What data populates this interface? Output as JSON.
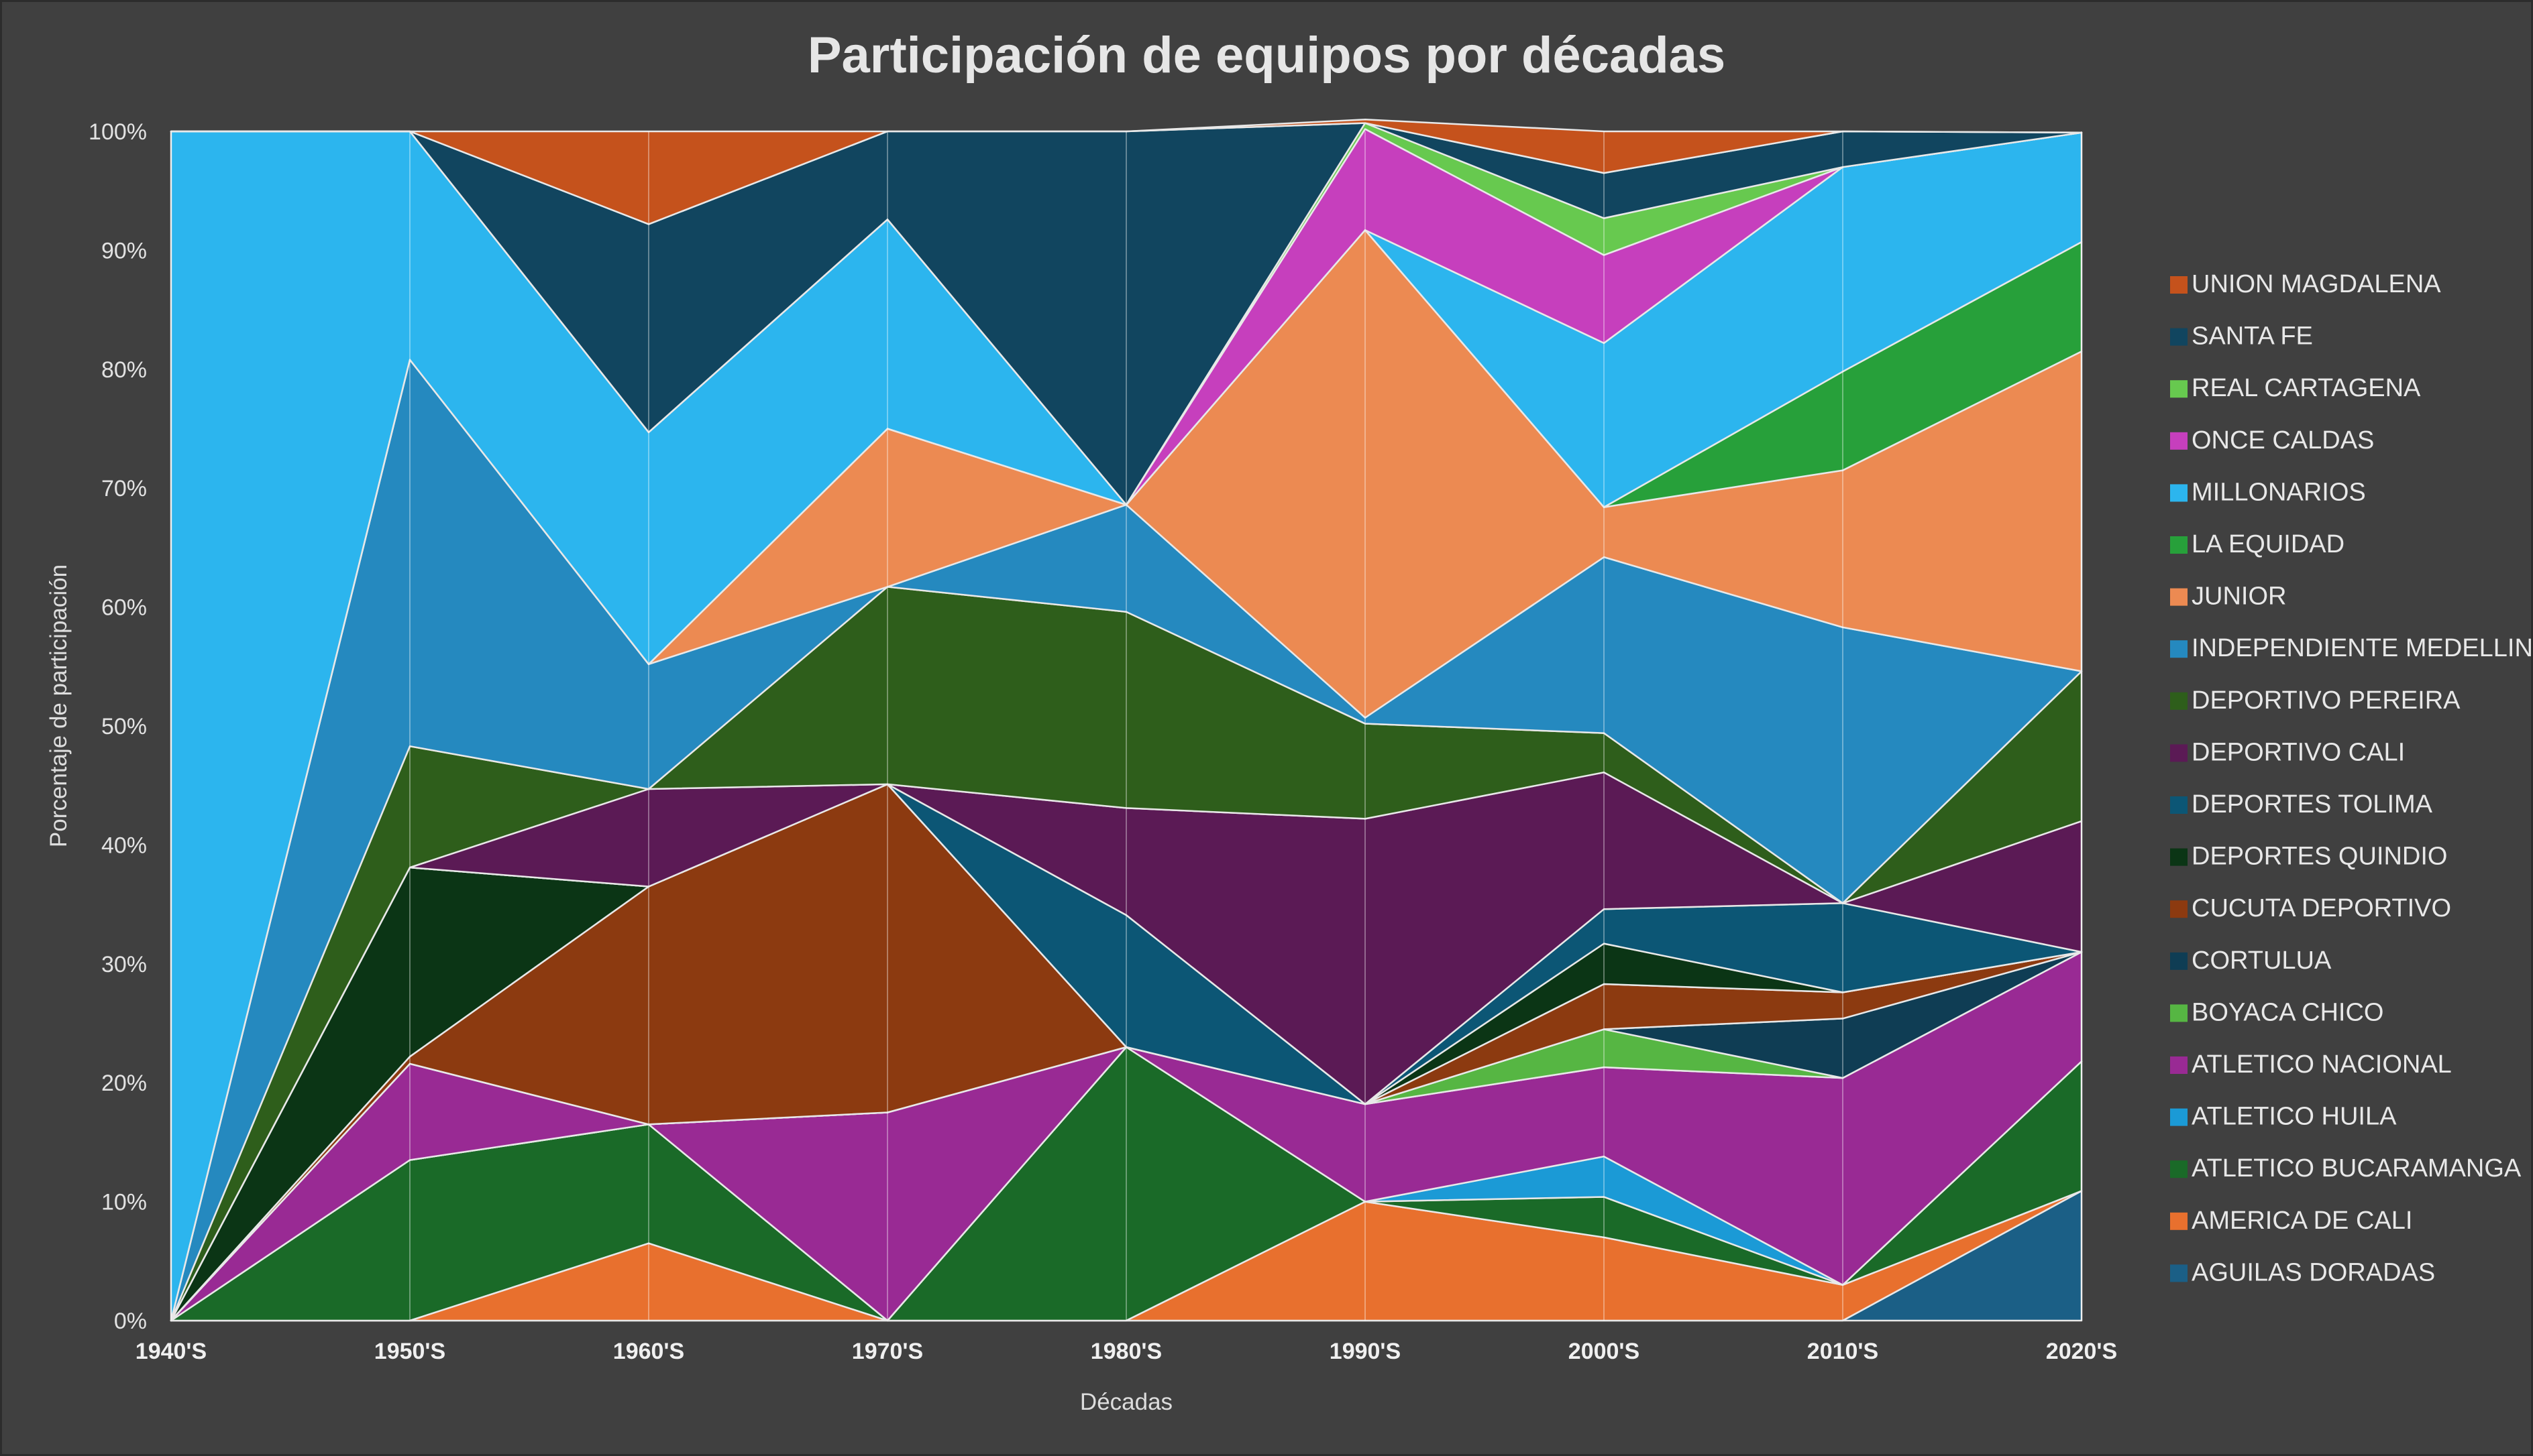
{
  "chart_data": {
    "type": "area",
    "stacked": true,
    "normalized": true,
    "title": "Participación de equipos por décadas",
    "xlabel": "Décadas",
    "ylabel": "Porcentaje de participación",
    "ylim": [
      0,
      100
    ],
    "yticks": [
      "0%",
      "10%",
      "20%",
      "30%",
      "40%",
      "50%",
      "60%",
      "70%",
      "80%",
      "90%",
      "100%"
    ],
    "categories": [
      "1940'S",
      "1950'S",
      "1960'S",
      "1970'S",
      "1980'S",
      "1990'S",
      "2000'S",
      "2010'S",
      "2020'S"
    ],
    "grid": true,
    "legend_position": "right",
    "series": [
      {
        "name": "AGUILAS DORADAS",
        "color": "#1b5f86",
        "values": [
          0,
          0,
          0,
          0,
          0,
          0,
          0,
          0,
          10.9
        ]
      },
      {
        "name": "AMERICA DE CALI",
        "color": "#e8702e",
        "values": [
          0,
          0,
          6.5,
          0,
          0,
          10,
          7,
          3,
          0
        ]
      },
      {
        "name": "ATLETICO BUCARAMANGA",
        "color": "#1a6a28",
        "values": [
          0,
          13.5,
          10,
          0,
          23,
          0,
          3.4,
          0,
          10.9
        ]
      },
      {
        "name": "ATLETICO HUILA",
        "color": "#1b9ad6",
        "values": [
          0,
          0,
          0,
          0,
          0,
          0,
          3.4,
          0,
          0
        ]
      },
      {
        "name": "ATLETICO NACIONAL",
        "color": "#992a94",
        "values": [
          0,
          8.1,
          0,
          17.5,
          0,
          8.2,
          7.5,
          17.4,
          9.2
        ]
      },
      {
        "name": "BOYACA CHICO",
        "color": "#56b643",
        "values": [
          0,
          0,
          0,
          0,
          0,
          0,
          3.2,
          0,
          0
        ]
      },
      {
        "name": "CORTULUA",
        "color": "#0f3d54",
        "values": [
          0,
          0,
          0,
          0,
          0,
          0,
          0,
          5,
          0
        ]
      },
      {
        "name": "CUCUTA DEPORTIVO",
        "color": "#8c3a10",
        "values": [
          0,
          0.6,
          20,
          27.6,
          0,
          0,
          3.8,
          2.2,
          0
        ]
      },
      {
        "name": "DEPORTES QUINDIO",
        "color": "#0b3515",
        "values": [
          0,
          15.9,
          0,
          0,
          0,
          0,
          3.4,
          0,
          0
        ]
      },
      {
        "name": "DEPORTES TOLIMA",
        "color": "#0c5675",
        "values": [
          0,
          0,
          0,
          0,
          11.1,
          0,
          2.9,
          7.5,
          0
        ]
      },
      {
        "name": "DEPORTIVO CALI",
        "color": "#5b1a55",
        "values": [
          0,
          0,
          8.2,
          0,
          9,
          24,
          11.5,
          0,
          11
        ]
      },
      {
        "name": "DEPORTIVO PEREIRA",
        "color": "#2e5e1b",
        "values": [
          0,
          10.2,
          0,
          16.6,
          16.5,
          8,
          3.3,
          0,
          12.6
        ]
      },
      {
        "name": "INDEPENDIENTE MEDELLIN",
        "color": "#2589bf",
        "values": [
          0,
          32.5,
          10.5,
          0,
          9,
          0.5,
          14.8,
          23.2,
          0
        ]
      },
      {
        "name": "JUNIOR",
        "color": "#ec8a52",
        "values": [
          0,
          0,
          0,
          13.3,
          0,
          41,
          4.2,
          13.2,
          26.9
        ]
      },
      {
        "name": "LA EQUIDAD",
        "color": "#27a03a",
        "values": [
          0,
          0,
          0,
          0,
          0,
          0,
          0,
          8.3,
          9.2
        ]
      },
      {
        "name": "MILLONARIOS",
        "color": "#2cb5ee",
        "values": [
          100,
          19.2,
          19.5,
          17.6,
          0,
          0,
          13.8,
          17.2,
          9.2
        ]
      },
      {
        "name": "ONCE CALDAS",
        "color": "#c63fbd",
        "values": [
          0,
          0,
          0,
          0,
          0,
          8.5,
          7.4,
          0,
          0
        ]
      },
      {
        "name": "REAL CARTAGENA",
        "color": "#67c94f",
        "values": [
          0,
          0,
          0,
          0,
          0,
          0.5,
          3.1,
          0,
          0
        ]
      },
      {
        "name": "SANTA FE",
        "color": "#11455f",
        "values": [
          0,
          0,
          17.5,
          7.4,
          31.4,
          0,
          3.8,
          3,
          0
        ]
      },
      {
        "name": "UNION MAGDALENA",
        "color": "#c5521c",
        "values": [
          0,
          0,
          7.8,
          0,
          0,
          0.3,
          3.5,
          0,
          0
        ]
      }
    ]
  }
}
